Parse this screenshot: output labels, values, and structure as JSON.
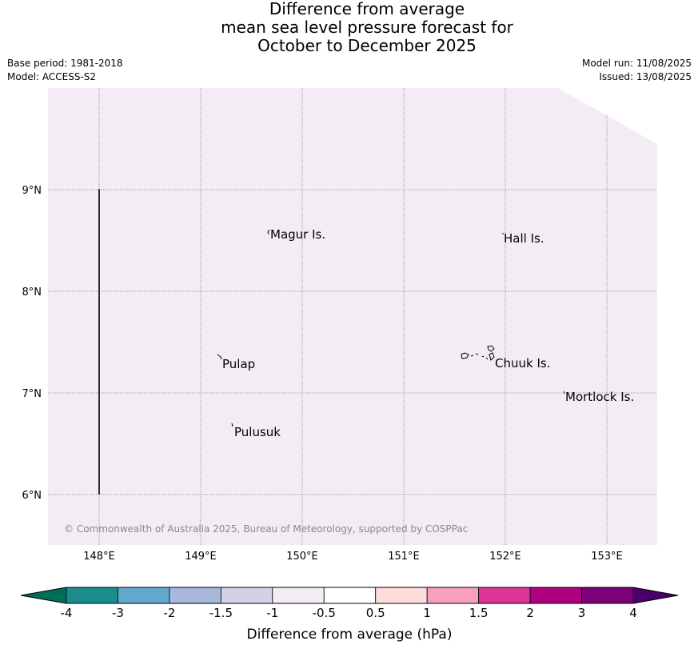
{
  "title": {
    "line1": "Difference from average",
    "line2": "mean sea level pressure forecast for",
    "line3": "October to December 2025"
  },
  "meta": {
    "base_period": "Base period: 1981-2018",
    "model": "Model: ACCESS-S2",
    "model_run": "Model run: 11/08/2025",
    "issued": "Issued: 13/08/2025"
  },
  "map": {
    "fill_color": "#f4ecf5",
    "lon_ticks": [
      "148°E",
      "149°E",
      "150°E",
      "151°E",
      "152°E",
      "153°E"
    ],
    "lat_ticks": [
      "9°N",
      "8°N",
      "7°N",
      "6°N"
    ],
    "places": [
      {
        "name": "Magur Is.",
        "icon": "island-shape"
      },
      {
        "name": "Hall Is.",
        "icon": "island-dot"
      },
      {
        "name": "Pulap",
        "icon": "island-shape"
      },
      {
        "name": "Chuuk Is.",
        "icon": "atoll-shape"
      },
      {
        "name": "Mortlock Is.",
        "icon": "island-dot"
      },
      {
        "name": "Pulusuk",
        "icon": "island-shape"
      }
    ],
    "copyright": "© Commonwealth of Australia 2025, Bureau of Meteorology, supported by COSPPac"
  },
  "colorbar": {
    "label": "Difference from average (hPa)",
    "ticks": [
      "-4",
      "-3",
      "-2",
      "-1.5",
      "-1",
      "-0.5",
      "0.5",
      "1",
      "1.5",
      "2",
      "3",
      "4"
    ],
    "colors": [
      "#1a8c8c",
      "#62a8cd",
      "#a8b8dc",
      "#d3d1e6",
      "#f4ecf5",
      "#ffffff",
      "#fddcdc",
      "#f89fbd",
      "#dc3595",
      "#ae017e",
      "#7a0177"
    ],
    "under_color": "#006d5a",
    "over_color": "#49006a"
  }
}
